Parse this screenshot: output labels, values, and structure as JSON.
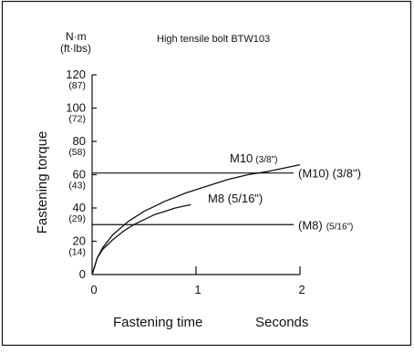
{
  "chart_data": {
    "type": "line",
    "title": "High tensile bolt  BTW103",
    "ylabel": "Fastening torque",
    "yunit_main": "N·m",
    "yunit_sub": "(ft·lbs)",
    "xlabel": "Fastening time",
    "xunit": "Seconds",
    "xlim": [
      0,
      2
    ],
    "ylim": [
      0,
      120
    ],
    "x_ticks": [
      {
        "value": 0,
        "label": "0"
      },
      {
        "value": 1,
        "label": "1"
      },
      {
        "value": 2,
        "label": "2"
      }
    ],
    "y_ticks": [
      {
        "value": 0,
        "label": "0",
        "sub": ""
      },
      {
        "value": 20,
        "label": "20",
        "sub": "(14)"
      },
      {
        "value": 40,
        "label": "40",
        "sub": "(29)"
      },
      {
        "value": 60,
        "label": "60",
        "sub": "(43)"
      },
      {
        "value": 80,
        "label": "80",
        "sub": "(58)"
      },
      {
        "value": 100,
        "label": "100",
        "sub": "(72)"
      },
      {
        "value": 120,
        "label": "120",
        "sub": "(87)"
      }
    ],
    "series": [
      {
        "name": "M10",
        "name_suffix": "(3/8\")",
        "x": [
          0,
          0.05,
          0.1,
          0.2,
          0.35,
          0.5,
          0.7,
          0.9,
          1.1,
          1.3,
          1.5,
          1.7,
          2.0
        ],
        "y": [
          0,
          10,
          16,
          24,
          32,
          38,
          44,
          49,
          53,
          57,
          60,
          62,
          66
        ]
      },
      {
        "name": "M8 (5/16\")",
        "name_suffix": "",
        "x": [
          0,
          0.05,
          0.1,
          0.2,
          0.3,
          0.4,
          0.5,
          0.6,
          0.7,
          0.8,
          0.95
        ],
        "y": [
          0,
          10,
          15,
          21,
          26,
          30,
          33,
          36,
          38,
          40,
          42
        ]
      }
    ],
    "reference_lines": [
      {
        "name": "(M10) (3/8\")",
        "value": 61
      },
      {
        "name": "(M8)",
        "name_suffix": "(5/16\")",
        "value": 30
      }
    ]
  }
}
